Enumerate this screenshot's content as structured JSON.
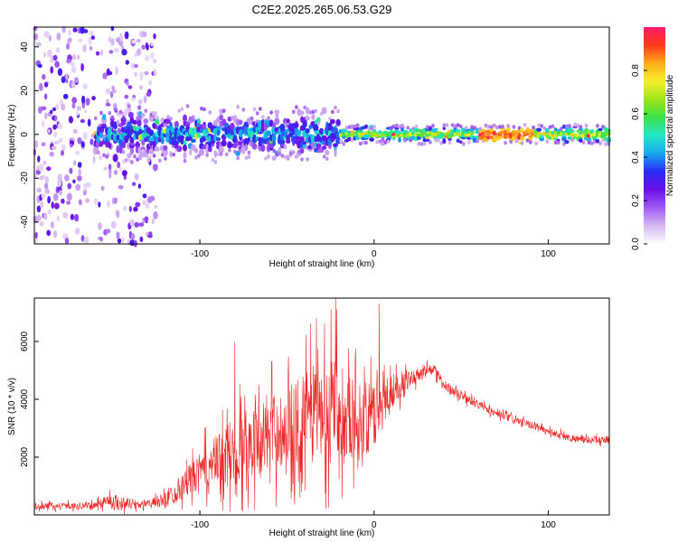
{
  "title": "C2E2.2025.265.06.53.G29",
  "chart_data": [
    {
      "type": "heatmap",
      "xlabel": "Height of straight line (km)",
      "ylabel": "Frequency (Hz)",
      "xlim": [
        -195,
        135
      ],
      "ylim": [
        -50,
        49
      ],
      "xticks": [
        -100,
        0,
        100
      ],
      "yticks": [
        -40,
        -20,
        0,
        20,
        40
      ],
      "colorbar": {
        "label": "Normalized spectral amplitude",
        "range": [
          0,
          1
        ],
        "ticks": [
          0.0,
          0.2,
          0.4,
          0.6,
          0.8
        ],
        "tick_labels": [
          "0.0",
          "0.2",
          "0.4",
          "0.6",
          "0.8"
        ],
        "colors": [
          "#ffffff",
          "#d7b8f2",
          "#9f5af2",
          "#6a0fe8",
          "#2a2af5",
          "#1aa6f0",
          "#22e8c8",
          "#3ce04a",
          "#9ee61a",
          "#f5f02a",
          "#ffad1a",
          "#ff3a1a",
          "#ff1a6a"
        ]
      },
      "features": {
        "noise_region_x": [
          -195,
          -125
        ],
        "ridge_frequency": 0,
        "ridge_start_x": -160,
        "peak_x": 80,
        "peak_amplitude": 0.95
      }
    },
    {
      "type": "line",
      "xlabel": "Height of straight line (km)",
      "ylabel": "SNR (10 * v/v)",
      "xlim": [
        -195,
        135
      ],
      "ylim": [
        0,
        7500
      ],
      "xticks": [
        -100,
        0,
        100
      ],
      "yticks": [
        2000,
        4000,
        6000
      ],
      "series": [
        {
          "name": "SNR",
          "color": "#ee2222",
          "envelope_x": [
            -195,
            -160,
            -155,
            -135,
            -120,
            -100,
            -80,
            -70,
            -60,
            -50,
            -40,
            -30,
            -20,
            -10,
            0,
            10,
            20,
            30,
            35,
            40,
            50,
            60,
            70,
            80,
            90,
            100,
            110,
            120,
            135
          ],
          "envelope_y": [
            300,
            320,
            500,
            350,
            500,
            1500,
            2200,
            2600,
            2800,
            3000,
            3400,
            3600,
            3800,
            3200,
            3400,
            4300,
            4700,
            5000,
            5000,
            4500,
            4100,
            3800,
            3500,
            3300,
            3100,
            2900,
            2700,
            2600,
            2600
          ],
          "noise_amplitude_x": [
            -195,
            -160,
            -150,
            -130,
            -120,
            -100,
            -80,
            -60,
            -40,
            -30,
            -20,
            -10,
            0,
            10,
            20,
            30,
            40,
            60,
            80,
            100,
            135
          ],
          "noise_amplitude_y": [
            150,
            150,
            400,
            150,
            400,
            900,
            1800,
            1800,
            2200,
            2600,
            2400,
            2000,
            1600,
            900,
            400,
            300,
            250,
            200,
            180,
            180,
            180
          ],
          "notable_peaks": [
            {
              "x": -22,
              "y": 7600
            },
            {
              "x": 3,
              "y": 7300
            },
            {
              "x": -33,
              "y": 6800
            },
            {
              "x": -80,
              "y": 6000
            }
          ]
        }
      ]
    }
  ]
}
